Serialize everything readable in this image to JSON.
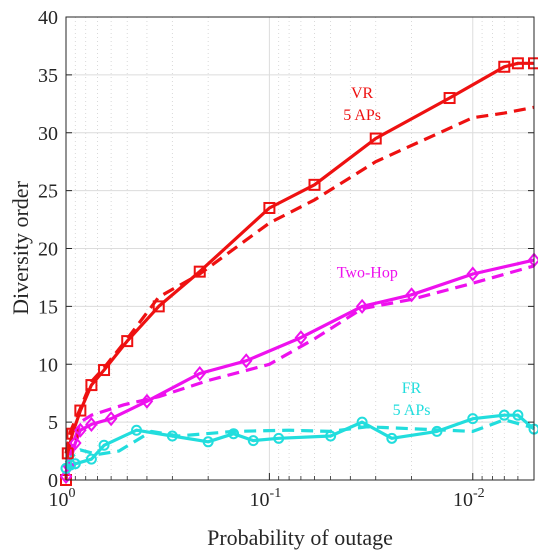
{
  "chart_data": {
    "type": "line",
    "xlabel": "Probability of outage",
    "ylabel": "Diversity order",
    "x_scale": "log-reversed",
    "xlim": [
      1,
      0.005
    ],
    "ylim": [
      0,
      40
    ],
    "yticks": [
      0,
      5,
      10,
      15,
      20,
      25,
      30,
      35,
      40
    ],
    "xticks": [
      {
        "value": 1,
        "base": "10",
        "exp": "0"
      },
      {
        "value": 0.1,
        "base": "10",
        "exp": "-1"
      },
      {
        "value": 0.01,
        "base": "10",
        "exp": "-2"
      }
    ],
    "grid": true,
    "colors": {
      "vr": "#ee1111",
      "twohop": "#ee11ee",
      "fr": "#22dddd"
    },
    "annotations": [
      {
        "id": "vr",
        "lines": [
          "VR",
          "5 APs"
        ],
        "x": 0.035,
        "y": 33,
        "color": "#ee1111"
      },
      {
        "id": "twohop",
        "lines": [
          "Two-Hop"
        ],
        "x": 0.033,
        "y": 17.5,
        "color": "#ee11ee"
      },
      {
        "id": "fr",
        "lines": [
          "FR",
          "5 APs"
        ],
        "x": 0.02,
        "y": 7.5,
        "color": "#22dddd"
      }
    ],
    "series": [
      {
        "id": "vr-solid",
        "style": "solid",
        "color": "#ee1111",
        "marker": "square",
        "x": [
          1,
          0.98,
          0.93,
          0.85,
          0.75,
          0.65,
          0.5,
          0.35,
          0.22,
          0.1,
          0.06,
          0.03,
          0.013,
          0.007,
          0.006,
          0.005
        ],
        "y": [
          0,
          2.3,
          4,
          6,
          8.2,
          9.5,
          12,
          15,
          18,
          23.5,
          25.5,
          29.5,
          33,
          35.7,
          36,
          36
        ]
      },
      {
        "id": "vr-dashed",
        "style": "dashed",
        "color": "#ee1111",
        "marker": "none",
        "x": [
          1,
          0.95,
          0.85,
          0.75,
          0.65,
          0.5,
          0.35,
          0.22,
          0.1,
          0.06,
          0.03,
          0.01,
          0.007,
          0.005
        ],
        "y": [
          2.3,
          4.2,
          6.2,
          8.5,
          9.7,
          12.2,
          15.8,
          17.8,
          22.2,
          24.2,
          27.5,
          31.3,
          31.7,
          32.2
        ]
      },
      {
        "id": "twohop-solid",
        "style": "solid",
        "color": "#ee11ee",
        "marker": "diamond",
        "x": [
          1,
          0.97,
          0.9,
          0.85,
          0.75,
          0.6,
          0.4,
          0.22,
          0.13,
          0.07,
          0.035,
          0.02,
          0.01,
          0.005
        ],
        "y": [
          0.3,
          1.2,
          3.2,
          4.3,
          4.8,
          5.3,
          6.8,
          9.2,
          10.3,
          12.3,
          15,
          16,
          17.8,
          19
        ]
      },
      {
        "id": "twohop-dashed",
        "style": "dashed",
        "color": "#ee11ee",
        "marker": "none",
        "x": [
          1,
          0.97,
          0.92,
          0.85,
          0.75,
          0.52,
          0.35,
          0.2,
          0.1,
          0.06,
          0.035,
          0.02,
          0.01,
          0.005
        ],
        "y": [
          0.5,
          1.5,
          3.2,
          5,
          5.6,
          6.5,
          7.2,
          8.6,
          10,
          12.2,
          14.8,
          15.6,
          17,
          18.5
        ]
      },
      {
        "id": "fr-solid",
        "style": "solid",
        "color": "#22dddd",
        "marker": "circle",
        "x": [
          1,
          0.95,
          0.9,
          0.75,
          0.65,
          0.45,
          0.3,
          0.2,
          0.15,
          0.12,
          0.09,
          0.05,
          0.035,
          0.025,
          0.015,
          0.01,
          0.007,
          0.006,
          0.005
        ],
        "y": [
          1,
          1.3,
          1.4,
          1.8,
          3,
          4.3,
          3.8,
          3.3,
          4,
          3.4,
          3.6,
          3.8,
          5,
          3.6,
          4.2,
          5.3,
          5.6,
          5.6,
          4.4
        ]
      },
      {
        "id": "fr-dashed",
        "style": "dashed",
        "color": "#22dddd",
        "marker": "none",
        "x": [
          1,
          0.97,
          0.85,
          0.7,
          0.55,
          0.38,
          0.28,
          0.15,
          0.08,
          0.05,
          0.033,
          0.018,
          0.01,
          0.007,
          0.005
        ],
        "y": [
          1.5,
          1.8,
          2.6,
          2.2,
          2.5,
          4.2,
          3.8,
          4.2,
          4.3,
          4.2,
          4.6,
          4.4,
          4.2,
          5.2,
          4.5
        ]
      }
    ]
  }
}
